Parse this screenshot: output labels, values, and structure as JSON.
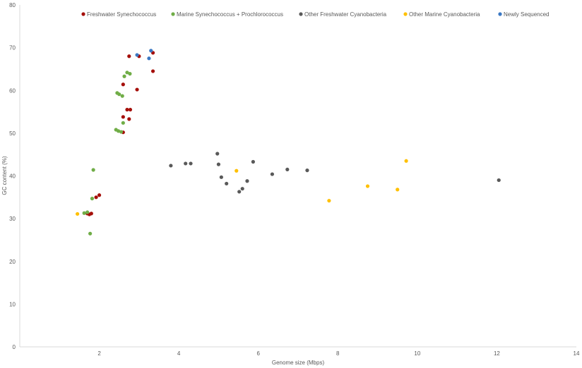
{
  "chart_data": {
    "type": "scatter",
    "title": "",
    "xlabel": "Genome size (Mbps)",
    "ylabel": "GC content (%)",
    "xlim": [
      0,
      14
    ],
    "ylim": [
      0,
      80
    ],
    "xticks": [
      "2",
      "4",
      "6",
      "8",
      "10",
      "12",
      "14"
    ],
    "yticks": [
      "0",
      "10",
      "20",
      "30",
      "40",
      "50",
      "60",
      "70",
      "80"
    ],
    "grid": false,
    "legend": "top",
    "series": [
      {
        "name": "Freshwater Synechococcus",
        "color": "#a50f0a",
        "points": [
          [
            2.75,
            68.0
          ],
          [
            3.0,
            68.0
          ],
          [
            3.35,
            68.8
          ],
          [
            3.35,
            64.5
          ],
          [
            2.95,
            60.2
          ],
          [
            2.6,
            61.4
          ],
          [
            2.7,
            55.5
          ],
          [
            2.78,
            55.5
          ],
          [
            2.6,
            53.8
          ],
          [
            2.75,
            53.3
          ],
          [
            2.6,
            50.2
          ],
          [
            2.0,
            35.5
          ],
          [
            1.92,
            35.0
          ],
          [
            1.7,
            31.2
          ],
          [
            1.75,
            31.0
          ],
          [
            1.8,
            31.2
          ]
        ]
      },
      {
        "name": "Marine Synechococcus + Prochlorococcus",
        "color": "#70ad47",
        "points": [
          [
            2.7,
            64.2
          ],
          [
            2.77,
            63.9
          ],
          [
            2.63,
            63.3
          ],
          [
            2.45,
            59.4
          ],
          [
            2.5,
            59.1
          ],
          [
            2.58,
            58.7
          ],
          [
            2.6,
            52.4
          ],
          [
            2.42,
            50.8
          ],
          [
            2.48,
            50.5
          ],
          [
            2.55,
            50.3
          ],
          [
            1.85,
            41.4
          ],
          [
            1.82,
            34.7
          ],
          [
            1.62,
            31.3
          ],
          [
            1.7,
            31.5
          ],
          [
            1.77,
            26.5
          ]
        ]
      },
      {
        "name": "Other Freshwater Cyanobacteria",
        "color": "#595959",
        "points": [
          [
            3.8,
            42.4
          ],
          [
            4.17,
            42.9
          ],
          [
            4.3,
            42.9
          ],
          [
            4.97,
            45.2
          ],
          [
            5.0,
            42.7
          ],
          [
            5.07,
            39.7
          ],
          [
            5.2,
            38.2
          ],
          [
            5.52,
            36.3
          ],
          [
            5.6,
            37.0
          ],
          [
            5.72,
            38.8
          ],
          [
            5.87,
            43.3
          ],
          [
            6.35,
            40.4
          ],
          [
            6.73,
            41.5
          ],
          [
            7.23,
            41.3
          ],
          [
            12.05,
            39.0
          ]
        ]
      },
      {
        "name": "Other Marine Cyanobacteria",
        "color": "#ffc000",
        "points": [
          [
            1.45,
            31.1
          ],
          [
            5.45,
            41.2
          ],
          [
            7.78,
            34.2
          ],
          [
            8.75,
            37.6
          ],
          [
            9.5,
            36.8
          ],
          [
            9.72,
            43.5
          ]
        ]
      },
      {
        "name": "Newly Sequenced",
        "color": "#3a78c3",
        "points": [
          [
            2.95,
            68.3
          ],
          [
            3.25,
            67.5
          ],
          [
            3.3,
            69.3
          ]
        ]
      }
    ]
  }
}
